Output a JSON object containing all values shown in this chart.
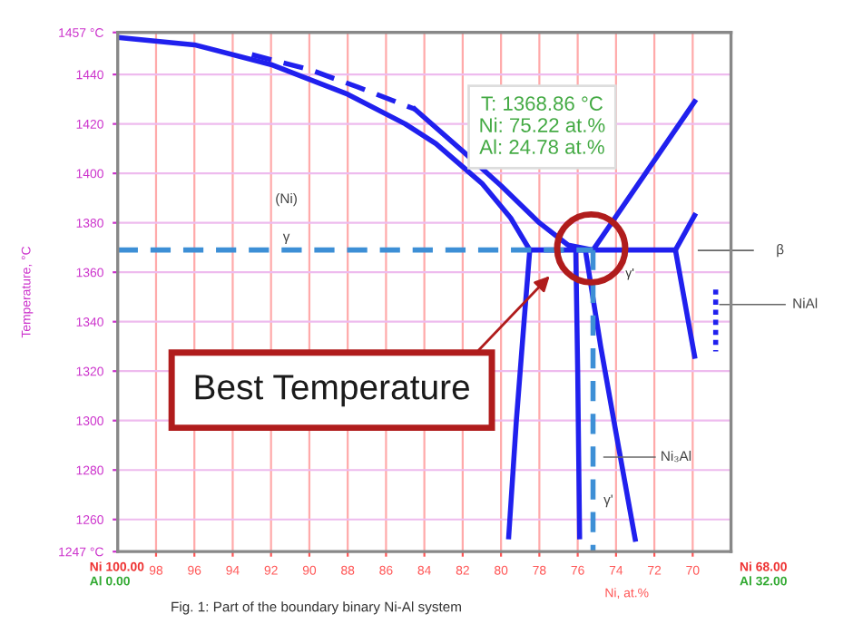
{
  "chart_data": {
    "type": "line",
    "ylabel": "Temperature, °C",
    "xlabel": "Ni, at.%",
    "xlim": [
      100,
      68
    ],
    "ylim": [
      1247,
      1457
    ],
    "xticks": [
      98,
      96,
      94,
      92,
      90,
      88,
      86,
      84,
      82,
      80,
      78,
      76,
      74,
      72,
      70
    ],
    "yticks": [
      {
        "value": 1247,
        "label": "1247 °C"
      },
      1260,
      1280,
      1300,
      1320,
      1340,
      1360,
      1380,
      1400,
      1420,
      1440,
      {
        "value": 1457,
        "label": "1457 °C"
      }
    ],
    "grid": true,
    "marker": "none",
    "series": [
      {
        "color": "#2020ee",
        "line_style": "solid",
        "x": [
          100,
          96,
          92,
          88,
          85,
          83.4,
          81,
          79.5,
          78.5
        ],
        "values": [
          1455,
          1452,
          1444,
          1432,
          1420,
          1412,
          1396,
          1382,
          1369
        ]
      },
      {
        "color": "#2020ee",
        "line_style": "dashed",
        "x": [
          93,
          90,
          87.5,
          84.5
        ],
        "values": [
          1448,
          1442,
          1435,
          1426
        ]
      },
      {
        "color": "#2020ee",
        "line_style": "solid",
        "x": [
          84.5,
          82,
          80,
          78,
          76.5,
          75.2
        ],
        "values": [
          1426,
          1409,
          1395,
          1380,
          1371,
          1369
        ]
      },
      {
        "color": "#2020ee",
        "line_style": "solid",
        "x": [
          78.5,
          70.9
        ],
        "values": [
          1369,
          1369
        ]
      },
      {
        "color": "#2020ee",
        "line_style": "solid",
        "x": [
          75.2,
          69.9
        ],
        "values": [
          1369,
          1429
        ]
      },
      {
        "color": "#2020ee",
        "line_style": "solid",
        "x": [
          70.9,
          69.9
        ],
        "values": [
          1369,
          1383
        ]
      },
      {
        "color": "#2020ee",
        "line_style": "solid",
        "x": [
          70.9,
          69.9
        ],
        "values": [
          1369,
          1326
        ]
      },
      {
        "color": "#2020ee",
        "line_style": "dotted",
        "x": [
          68.8,
          68.8
        ],
        "values": [
          1353,
          1328
        ]
      },
      {
        "color": "#2020ee",
        "line_style": "solid",
        "x": [
          78.5,
          78.8,
          79.2,
          79.6
        ],
        "values": [
          1369,
          1340,
          1300,
          1253
        ]
      },
      {
        "color": "#2020ee",
        "line_style": "solid",
        "x": [
          76.1,
          76.0,
          75.9
        ],
        "values": [
          1369,
          1320,
          1253
        ]
      },
      {
        "color": "#2020ee",
        "line_style": "solid",
        "x": [
          75.6,
          74.8,
          74.0,
          73.0
        ],
        "values": [
          1369,
          1330,
          1295,
          1252
        ]
      },
      {
        "color": "#3d8fd6",
        "line_style": "dashed",
        "x": [
          100,
          75.2
        ],
        "values": [
          1369,
          1369
        ]
      },
      {
        "color": "#3d8fd6",
        "line_style": "dashed",
        "x": [
          75.2,
          75.2
        ],
        "values": [
          1369,
          1247
        ]
      }
    ],
    "annotations": [
      "(Ni)",
      "γ",
      "T: 1368.86 °C\nNi: 75.22 at.%\nAl: 24.78 at.%",
      "γ'",
      "β",
      "NiAl",
      "Ni₃Al",
      "γ'",
      "Best Temperature",
      "Ni 100.00",
      "Al 0.00",
      "Ni 68.00",
      "Al 32.00",
      "Fig. 1: Part of the boundary binary Ni-Al system"
    ]
  }
}
